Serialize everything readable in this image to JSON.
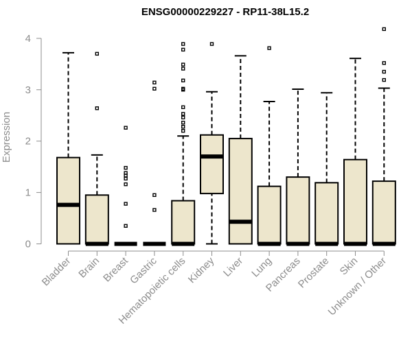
{
  "chart_data": {
    "type": "boxplot",
    "title": "ENSG00000229227 - RP11-38L15.2",
    "xlabel": "",
    "ylabel": "Expression",
    "ylim": [
      0,
      4.3
    ],
    "yticks": [
      0,
      1,
      2,
      3,
      4
    ],
    "grid": false,
    "categories": [
      "Bladder",
      "Brain",
      "Breast",
      "Gastric",
      "Hematopoietic cells",
      "Kidney",
      "Liver",
      "Lung",
      "Pancreas",
      "Prostate",
      "Skin",
      "Unknown / Other"
    ],
    "boxes": [
      {
        "q1": 0,
        "median": 0.76,
        "q3": 1.68,
        "whisker_low": 0,
        "whisker_high": 3.72,
        "outliers": []
      },
      {
        "q1": 0,
        "median": 0,
        "q3": 0.95,
        "whisker_low": 0,
        "whisker_high": 1.73,
        "outliers": [
          2.64,
          3.7
        ]
      },
      {
        "q1": 0,
        "median": 0,
        "q3": 0,
        "whisker_low": 0,
        "whisker_high": 0,
        "outliers": [
          0.35,
          0.78,
          1.16,
          1.27,
          1.33,
          1.38,
          1.48,
          2.26
        ]
      },
      {
        "q1": 0,
        "median": 0,
        "q3": 0,
        "whisker_low": 0,
        "whisker_high": 0,
        "outliers": [
          0.66,
          0.95,
          3.02,
          3.14
        ]
      },
      {
        "q1": 0,
        "median": 0,
        "q3": 0.84,
        "whisker_low": 0,
        "whisker_high": 2.1,
        "outliers": [
          2.2,
          2.28,
          2.36,
          2.46,
          2.53,
          2.66,
          3.0,
          3.02,
          3.18,
          3.41,
          3.49,
          3.78,
          3.89
        ]
      },
      {
        "q1": 0.98,
        "median": 1.7,
        "q3": 2.12,
        "whisker_low": 0,
        "whisker_high": 2.96,
        "outliers": [
          3.89
        ]
      },
      {
        "q1": 0,
        "median": 0.43,
        "q3": 2.05,
        "whisker_low": 0,
        "whisker_high": 3.66,
        "outliers": []
      },
      {
        "q1": 0,
        "median": 0,
        "q3": 1.12,
        "whisker_low": 0,
        "whisker_high": 2.77,
        "outliers": [
          3.81
        ]
      },
      {
        "q1": 0,
        "median": 0,
        "q3": 1.3,
        "whisker_low": 0,
        "whisker_high": 3.01,
        "outliers": []
      },
      {
        "q1": 0,
        "median": 0,
        "q3": 1.19,
        "whisker_low": 0,
        "whisker_high": 2.94,
        "outliers": []
      },
      {
        "q1": 0,
        "median": 0,
        "q3": 1.64,
        "whisker_low": 0,
        "whisker_high": 3.61,
        "outliers": []
      },
      {
        "q1": 0,
        "median": 0,
        "q3": 1.22,
        "whisker_low": 0,
        "whisker_high": 3.03,
        "outliers": [
          3.19,
          3.35,
          3.52,
          4.18
        ]
      }
    ],
    "colors": {
      "box_fill": "#ede6cc",
      "box_stroke": "#000000",
      "axis": "#8c8c8c"
    }
  }
}
